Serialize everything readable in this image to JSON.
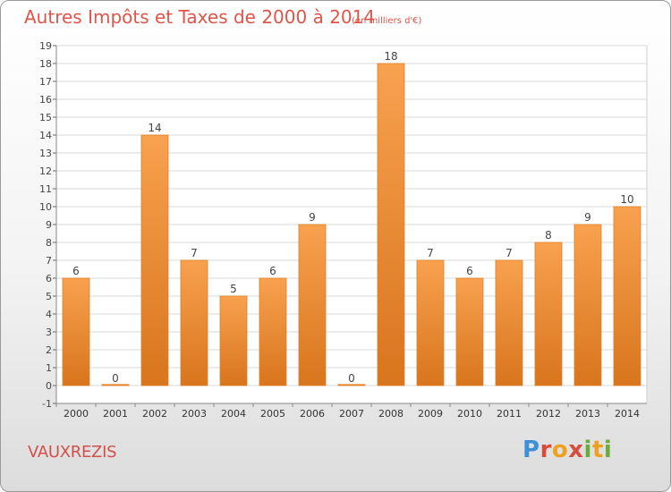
{
  "header": {
    "title": "Autres Impôts et Taxes de 2000 à 2014",
    "subtitle": "(en milliers d'€)"
  },
  "location": "VAUXREZIS",
  "logo": {
    "text": "Proxiti",
    "colors": [
      "#3d8fd8",
      "#d74c3c",
      "#f0a020",
      "#d74c3c",
      "#6aae3a",
      "#f0a020",
      "#6aae3a"
    ]
  },
  "colors": {
    "bar_top": "#f8a14f",
    "bar_bottom": "#d8751d",
    "title": "#e0554a",
    "grid": "#d9d9d9"
  },
  "chart_data": {
    "type": "bar",
    "categories": [
      "2000",
      "2001",
      "2002",
      "2003",
      "2004",
      "2005",
      "2006",
      "2007",
      "2008",
      "2009",
      "2010",
      "2011",
      "2012",
      "2013",
      "2014"
    ],
    "values": [
      6,
      0,
      14,
      7,
      5,
      6,
      9,
      0,
      18,
      7,
      6,
      7,
      8,
      9,
      10
    ],
    "data_labels": [
      "6",
      "0",
      "14",
      "7",
      "5",
      "6",
      "9",
      "0",
      "18",
      "7",
      "6",
      "7",
      "8",
      "9",
      "10"
    ],
    "ylim": [
      -1,
      19
    ],
    "y_ticks": [
      "-1",
      "0",
      "1",
      "2",
      "3",
      "4",
      "5",
      "6",
      "7",
      "8",
      "9",
      "10",
      "11",
      "12",
      "13",
      "14",
      "15",
      "16",
      "17",
      "18",
      "19"
    ],
    "y_tick_values": [
      -1,
      0,
      1,
      2,
      3,
      4,
      5,
      6,
      7,
      8,
      9,
      10,
      11,
      12,
      13,
      14,
      15,
      16,
      17,
      18,
      19
    ],
    "grid": true,
    "title": "Autres Impôts et Taxes de 2000 à 2014",
    "xlabel": "",
    "ylabel": ""
  }
}
